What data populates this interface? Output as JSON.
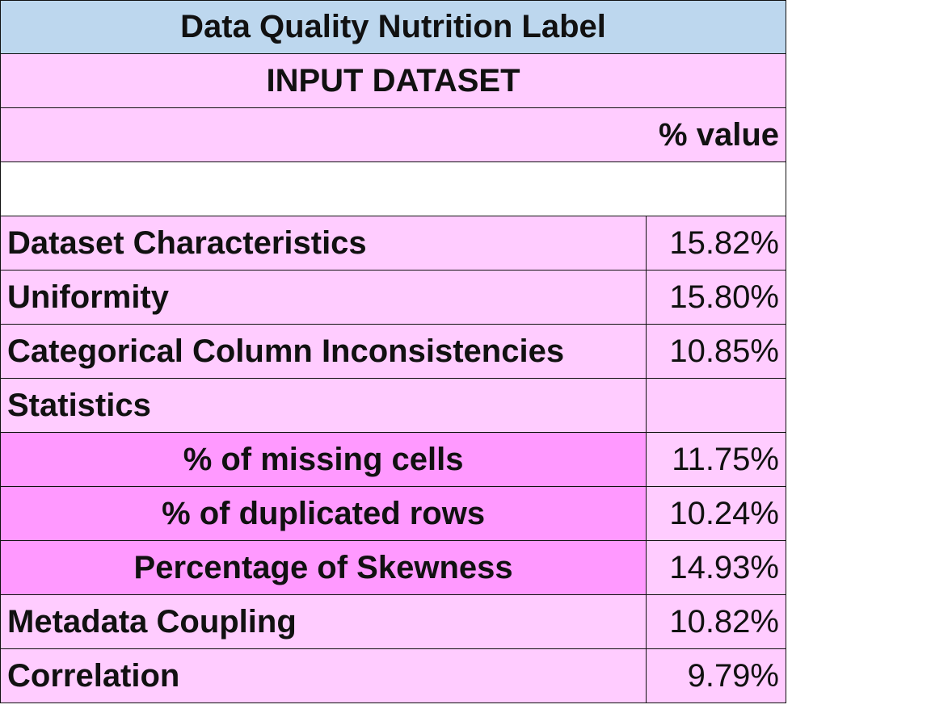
{
  "title": "Data Quality Nutrition Label",
  "subtitle": "INPUT DATASET",
  "value_header": "% value",
  "rows": [
    {
      "name": "Dataset Characteristics",
      "value": "15.82%"
    },
    {
      "name": "Uniformity",
      "value": "15.80%"
    },
    {
      "name": "Categorical Column Inconsistencies",
      "value": "10.85%"
    },
    {
      "name": "Statistics",
      "value": ""
    },
    {
      "name": "% of missing cells",
      "value": "11.75%"
    },
    {
      "name": "% of duplicated rows",
      "value": "10.24%"
    },
    {
      "name": "Percentage of Skewness",
      "value": "14.93%"
    },
    {
      "name": "Metadata Coupling",
      "value": "10.82%"
    },
    {
      "name": "Correlation",
      "value": "9.79%"
    }
  ],
  "colors": {
    "title_bg": "#bdd7ee",
    "row_bg": "#ffccff",
    "sub_row_bg": "#ff99ff"
  }
}
